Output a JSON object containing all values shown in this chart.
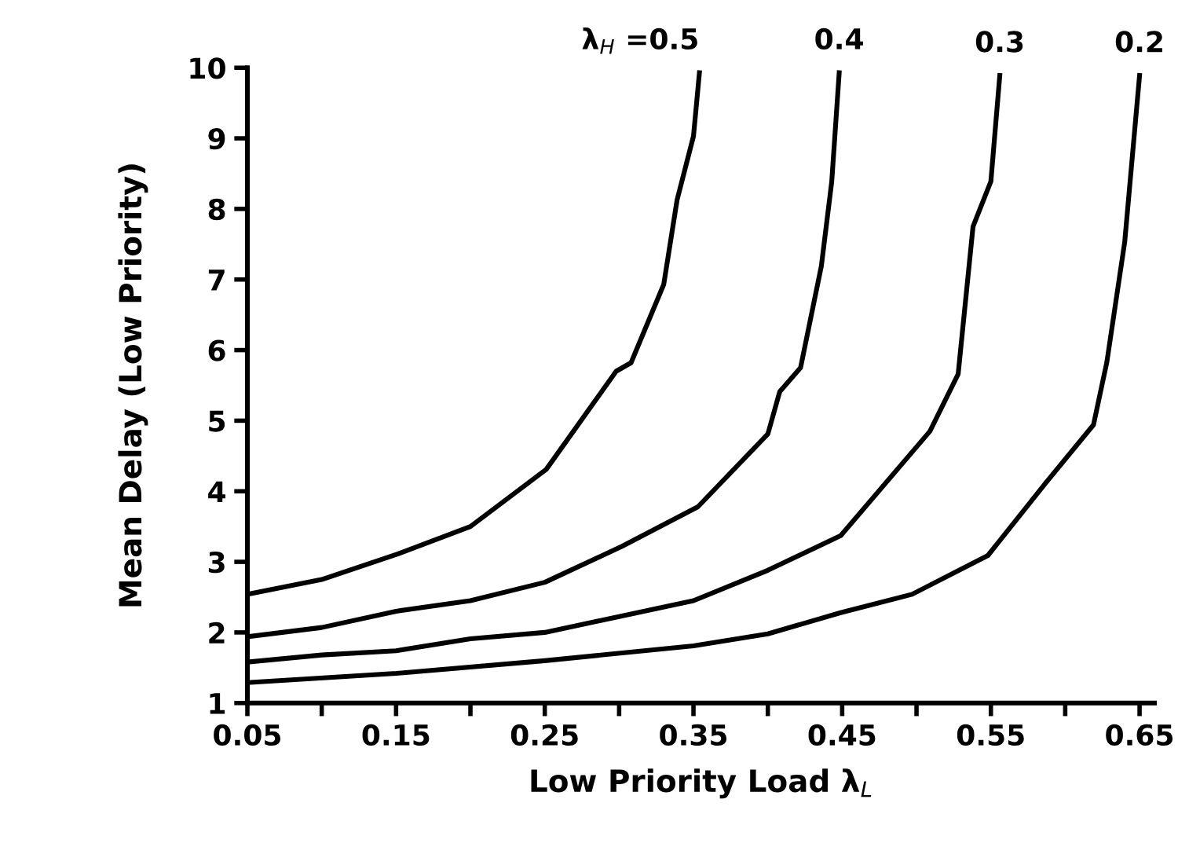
{
  "chart_data": {
    "type": "line",
    "xlabel": "Low Priority Load λ$_{L}$",
    "ylabel": "Mean Delay (Low Priority)",
    "xlim": [
      0.05,
      0.66
    ],
    "ylim": [
      1,
      10
    ],
    "xticks": [
      0.05,
      {
        "value": 0.1,
        "label": null
      },
      0.15,
      {
        "value": 0.2,
        "label": null
      },
      0.25,
      {
        "value": 0.3,
        "label": null
      },
      0.35,
      {
        "value": 0.4,
        "label": null
      },
      0.45,
      {
        "value": 0.5,
        "label": null
      },
      0.55,
      {
        "value": 0.6,
        "label": null
      },
      0.65
    ],
    "yticks": [
      1,
      2,
      3,
      4,
      5,
      6,
      7,
      8,
      9,
      10
    ],
    "grid": false,
    "legend": false,
    "marker": "none",
    "line_style": "solid",
    "series": [
      {
        "name": "λ$_{H}$ =0.5",
        "color": "#000000",
        "x": [
          0.05,
          0.1,
          0.151,
          0.2,
          0.251,
          0.298,
          0.308,
          0.33,
          0.339,
          0.35,
          0.354
        ],
        "values": [
          2.54,
          2.75,
          3.11,
          3.5,
          4.31,
          5.7,
          5.82,
          6.93,
          8.13,
          9.03,
          9.93
        ]
      },
      {
        "name": "0.4",
        "color": "#000000",
        "x": [
          0.05,
          0.1,
          0.15,
          0.2,
          0.25,
          0.302,
          0.353,
          0.4,
          0.408,
          0.422,
          0.436,
          0.443,
          0.448
        ],
        "values": [
          1.94,
          2.07,
          2.3,
          2.45,
          2.71,
          3.22,
          3.78,
          4.81,
          5.41,
          5.75,
          7.19,
          8.39,
          9.93
        ]
      },
      {
        "name": "0.3",
        "color": "#000000",
        "x": [
          0.05,
          0.1,
          0.15,
          0.2,
          0.25,
          0.35,
          0.4,
          0.449,
          0.509,
          0.528,
          0.538,
          0.55,
          0.556
        ],
        "values": [
          1.58,
          1.68,
          1.74,
          1.91,
          2.0,
          2.45,
          2.88,
          3.37,
          4.85,
          5.66,
          7.75,
          8.39,
          9.89
        ]
      },
      {
        "name": "0.2",
        "color": "#000000",
        "x": [
          0.05,
          0.15,
          0.25,
          0.35,
          0.4,
          0.449,
          0.497,
          0.548,
          0.587,
          0.619,
          0.628,
          0.64,
          0.65
        ],
        "values": [
          1.29,
          1.42,
          1.6,
          1.81,
          1.98,
          2.28,
          2.54,
          3.09,
          4.12,
          4.94,
          5.83,
          7.53,
          9.89
        ]
      }
    ]
  }
}
